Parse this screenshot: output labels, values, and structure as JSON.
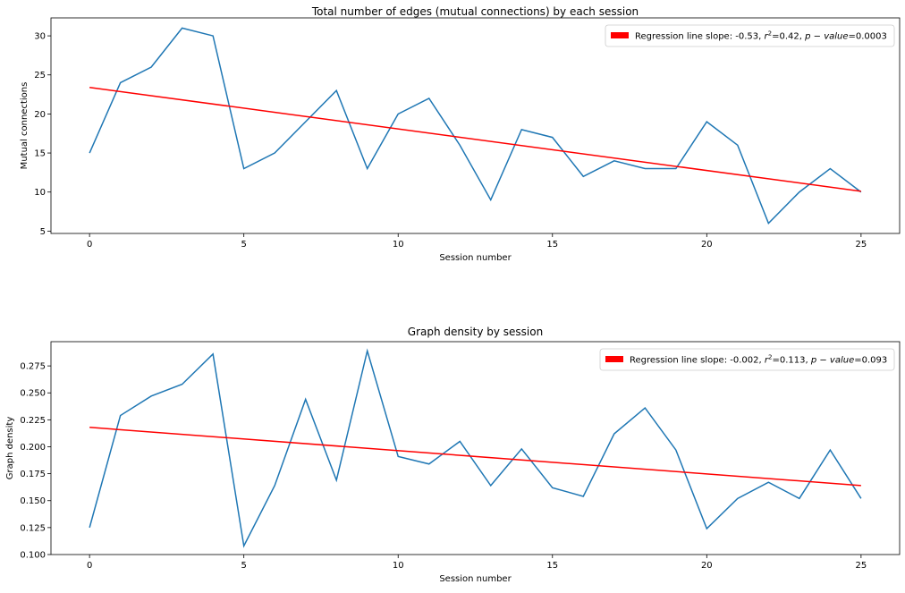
{
  "chart_data": [
    {
      "type": "line",
      "title": "Total number of edges (mutual connections) by each session",
      "xlabel": "Session number",
      "ylabel": "Mutual connections",
      "xlim": [
        -1.25,
        26.25
      ],
      "ylim": [
        4.7,
        32.3
      ],
      "xticks": [
        0,
        5,
        10,
        15,
        20,
        25
      ],
      "yticks": [
        5,
        10,
        15,
        20,
        25,
        30
      ],
      "ytick_format": "int",
      "grid": false,
      "legend_position": "top-right",
      "x": [
        0,
        1,
        2,
        3,
        4,
        5,
        6,
        7,
        8,
        9,
        10,
        11,
        12,
        13,
        14,
        15,
        16,
        17,
        18,
        19,
        20,
        21,
        22,
        23,
        24,
        25
      ],
      "series": [
        {
          "values": [
            15,
            24,
            26,
            31,
            30,
            13,
            15,
            19,
            23,
            13,
            20,
            22,
            16,
            9,
            18,
            17,
            12,
            14,
            13,
            13,
            19,
            16,
            6,
            10,
            13,
            10
          ],
          "color": "#1f77b4"
        },
        {
          "name": "Regression line slope: -0.53, r²=0.42, p - value=0.0003",
          "legend_parts": [
            "Regression line slope: -0.53, ",
            "r",
            "2",
            "=0.42, ",
            "p − value",
            "=0.0003"
          ],
          "values": [
            23.4,
            10.1
          ],
          "x": [
            0,
            25
          ],
          "color": "#ff0000"
        }
      ]
    },
    {
      "type": "line",
      "title": "Graph density by session",
      "xlabel": "Session number",
      "ylabel": "Graph density",
      "xlim": [
        -1.25,
        26.25
      ],
      "ylim": [
        0.1,
        0.2975
      ],
      "xticks": [
        0,
        5,
        10,
        15,
        20,
        25
      ],
      "yticks": [
        0.1,
        0.125,
        0.15,
        0.175,
        0.2,
        0.225,
        0.25,
        0.275
      ],
      "ytick_format": "3dp",
      "grid": false,
      "legend_position": "top-right",
      "x": [
        0,
        1,
        2,
        3,
        4,
        5,
        6,
        7,
        8,
        9,
        10,
        11,
        12,
        13,
        14,
        15,
        16,
        17,
        18,
        19,
        20,
        21,
        22,
        23,
        24,
        25
      ],
      "series": [
        {
          "values": [
            0.125,
            0.229,
            0.247,
            0.258,
            0.286,
            0.108,
            0.164,
            0.244,
            0.169,
            0.289,
            0.191,
            0.184,
            0.205,
            0.164,
            0.198,
            0.162,
            0.154,
            0.212,
            0.236,
            0.197,
            0.124,
            0.152,
            0.167,
            0.152,
            0.197,
            0.152
          ],
          "color": "#1f77b4"
        },
        {
          "name": "Regression line slope: -0.002, r²=0.113, p - value=0.093",
          "legend_parts": [
            "Regression line slope: -0.002, ",
            "r",
            "2",
            "=0.113, ",
            "p − value",
            "=0.093"
          ],
          "values": [
            0.218,
            0.164
          ],
          "x": [
            0,
            25
          ],
          "color": "#ff0000"
        }
      ]
    }
  ]
}
